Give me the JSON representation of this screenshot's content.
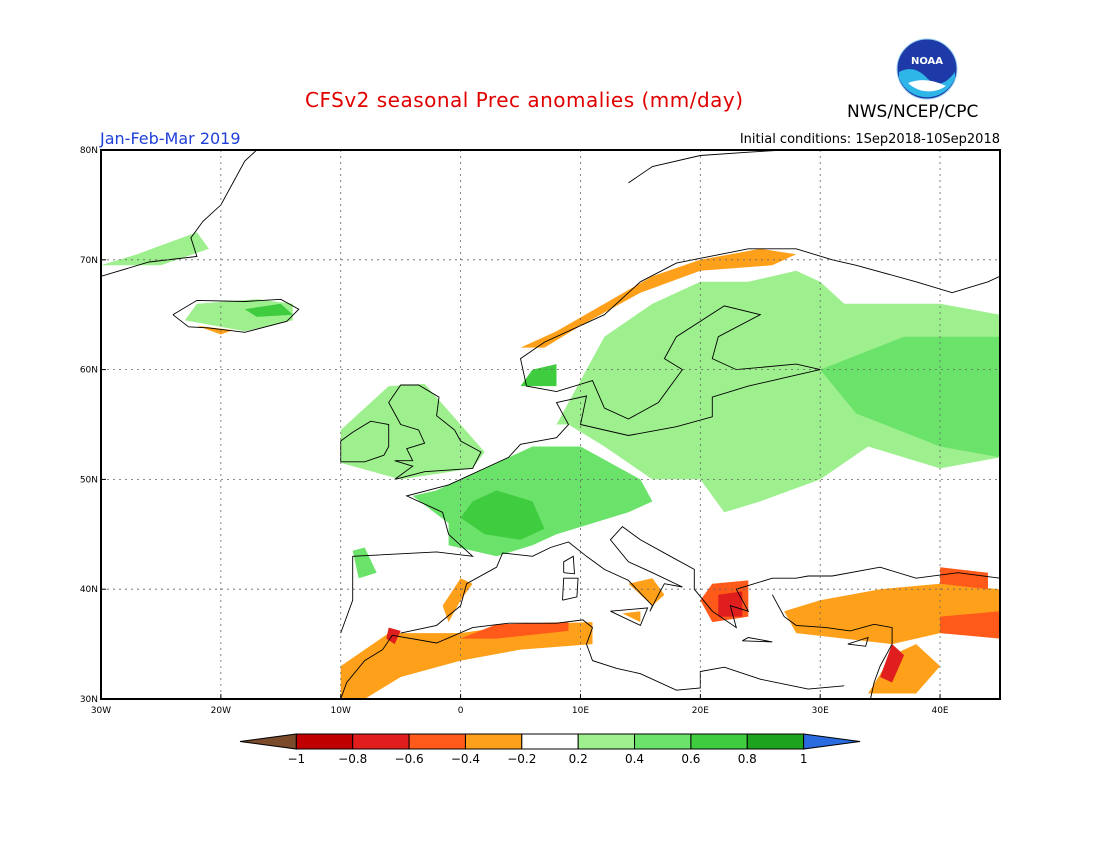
{
  "header": {
    "title": "CFSv2 seasonal Prec anomalies (mm/day)",
    "org": "NWS/NCEP/CPC",
    "period": "Jan-Feb-Mar 2019",
    "initial_conditions": "Initial conditions: 1Sep2018-10Sep2018",
    "logo_text": "NOAA"
  },
  "map": {
    "lon_range": [
      -30,
      45
    ],
    "lat_range": [
      30,
      80
    ],
    "lon_ticks": [
      "30W",
      "20W",
      "10W",
      "0",
      "10E",
      "20E",
      "30E",
      "40E"
    ],
    "lat_ticks": [
      "30N",
      "40N",
      "50N",
      "60N",
      "70N",
      "80N"
    ],
    "grid": "dotted"
  },
  "colorbar": {
    "labels": [
      "−1",
      "−0.8",
      "−0.6",
      "−0.4",
      "−0.2",
      "0.2",
      "0.4",
      "0.6",
      "0.8",
      "1"
    ],
    "colors": [
      "#7a4a2a",
      "#c00000",
      "#e01e1e",
      "#ff5a1a",
      "#ffa01a",
      "#ffffff",
      "#9ef08e",
      "#6be36b",
      "#3fcc3f",
      "#1ea31e",
      "#2b6be0"
    ]
  },
  "anomaly_regions": [
    {
      "level": "0.2",
      "color": "#9ef08e",
      "region": "scandinavia-russia",
      "lonlat": [
        [
          8,
          55
        ],
        [
          10,
          59
        ],
        [
          12,
          63
        ],
        [
          16,
          66
        ],
        [
          20,
          68
        ],
        [
          24,
          68
        ],
        [
          28,
          69
        ],
        [
          30,
          68
        ],
        [
          32,
          66
        ],
        [
          40,
          66
        ],
        [
          45,
          65
        ],
        [
          45,
          52
        ],
        [
          40,
          51
        ],
        [
          34,
          53
        ],
        [
          30,
          50
        ],
        [
          25,
          48
        ],
        [
          22,
          47
        ],
        [
          20,
          50
        ],
        [
          16,
          50
        ],
        [
          12,
          53
        ],
        [
          9,
          55
        ]
      ]
    },
    {
      "level": "0.2",
      "color": "#9ef08e",
      "region": "british-isles",
      "lonlat": [
        [
          -10,
          51.5
        ],
        [
          -10,
          54.5
        ],
        [
          -6,
          58.5
        ],
        [
          -3,
          58.7
        ],
        [
          0,
          55
        ],
        [
          2,
          52.5
        ],
        [
          1,
          51
        ],
        [
          -5,
          50
        ],
        [
          -10,
          51.5
        ]
      ]
    },
    {
      "level": "0.2",
      "color": "#9ef08e",
      "region": "iceland",
      "lonlat": [
        [
          -23,
          64.5
        ],
        [
          -22,
          66
        ],
        [
          -17,
          66.4
        ],
        [
          -14,
          66
        ],
        [
          -14,
          64.5
        ],
        [
          -18,
          63.5
        ],
        [
          -23,
          64.5
        ]
      ]
    },
    {
      "level": "0.2",
      "color": "#9ef08e",
      "region": "greenland-coast",
      "lonlat": [
        [
          -30,
          69.5
        ],
        [
          -27,
          70.5
        ],
        [
          -22,
          72.5
        ],
        [
          -21,
          71
        ],
        [
          -25,
          69.5
        ],
        [
          -30,
          69.5
        ]
      ]
    },
    {
      "level": "0.4",
      "color": "#6be36b",
      "region": "western-europe",
      "lonlat": [
        [
          -4,
          48.5
        ],
        [
          -1,
          46
        ],
        [
          -1,
          44
        ],
        [
          3,
          43
        ],
        [
          6,
          44
        ],
        [
          8,
          45
        ],
        [
          11,
          46
        ],
        [
          14,
          47
        ],
        [
          16,
          48
        ],
        [
          15,
          50
        ],
        [
          10,
          53
        ],
        [
          6,
          53
        ],
        [
          2,
          51
        ],
        [
          -2,
          49
        ],
        [
          -4,
          48.5
        ]
      ]
    },
    {
      "level": "0.4",
      "color": "#6be36b",
      "region": "russia-east",
      "lonlat": [
        [
          30,
          60
        ],
        [
          37,
          63
        ],
        [
          45,
          63
        ],
        [
          45,
          52
        ],
        [
          40,
          53
        ],
        [
          33,
          56
        ],
        [
          30,
          60
        ]
      ]
    },
    {
      "level": "0.4",
      "color": "#6be36b",
      "region": "iberia-nw",
      "lonlat": [
        [
          -9,
          43.5
        ],
        [
          -8,
          43.8
        ],
        [
          -7,
          41.5
        ],
        [
          -8.5,
          41
        ],
        [
          -9,
          43.5
        ]
      ]
    },
    {
      "level": "0.6",
      "color": "#3fcc3f",
      "region": "france-core",
      "lonlat": [
        [
          1,
          48
        ],
        [
          3,
          49
        ],
        [
          6,
          48
        ],
        [
          7,
          45.5
        ],
        [
          5,
          44.5
        ],
        [
          2,
          45
        ],
        [
          0,
          46.5
        ],
        [
          1,
          48
        ]
      ]
    },
    {
      "level": "0.6",
      "color": "#3fcc3f",
      "region": "south-scandinavia",
      "lonlat": [
        [
          5,
          58.5
        ],
        [
          6,
          60
        ],
        [
          8,
          60.5
        ],
        [
          8,
          58.5
        ],
        [
          5,
          58.5
        ]
      ]
    },
    {
      "level": "0.6",
      "color": "#3fcc3f",
      "region": "iceland-east",
      "lonlat": [
        [
          -18,
          65.5
        ],
        [
          -15,
          66
        ],
        [
          -14,
          65
        ],
        [
          -17,
          64.8
        ],
        [
          -18,
          65.5
        ]
      ]
    },
    {
      "level": "-0.2",
      "color": "#ffa01a",
      "region": "north-africa",
      "lonlat": [
        [
          -10,
          30
        ],
        [
          -10,
          33
        ],
        [
          -6,
          36
        ],
        [
          0,
          36
        ],
        [
          5,
          36.8
        ],
        [
          11,
          37
        ],
        [
          11,
          35
        ],
        [
          5,
          34.5
        ],
        [
          0,
          33.5
        ],
        [
          -5,
          32
        ],
        [
          -8,
          30
        ],
        [
          -10,
          30
        ]
      ]
    },
    {
      "level": "-0.2",
      "color": "#ffa01a",
      "region": "spain-east",
      "lonlat": [
        [
          -1,
          37
        ],
        [
          0,
          39
        ],
        [
          1,
          40.5
        ],
        [
          0,
          41
        ],
        [
          -1.5,
          38.5
        ],
        [
          -1,
          37
        ]
      ]
    },
    {
      "level": "-0.2",
      "color": "#ffa01a",
      "region": "turkey",
      "lonlat": [
        [
          27,
          38
        ],
        [
          30,
          39
        ],
        [
          35,
          40
        ],
        [
          40,
          40.5
        ],
        [
          45,
          40
        ],
        [
          45,
          36
        ],
        [
          40,
          36
        ],
        [
          36,
          35
        ],
        [
          32,
          35.5
        ],
        [
          28,
          36
        ],
        [
          27,
          38
        ]
      ]
    },
    {
      "level": "-0.2",
      "color": "#ffa01a",
      "region": "levant",
      "lonlat": [
        [
          34,
          30.5
        ],
        [
          36,
          34
        ],
        [
          38,
          35
        ],
        [
          40,
          33
        ],
        [
          38,
          30.5
        ],
        [
          34,
          30.5
        ]
      ]
    },
    {
      "level": "-0.2",
      "color": "#ffa01a",
      "region": "norway-coast",
      "lonlat": [
        [
          5,
          62
        ],
        [
          8,
          63.5
        ],
        [
          12,
          66
        ],
        [
          16,
          68.5
        ],
        [
          20,
          70
        ],
        [
          25,
          71
        ],
        [
          28,
          70.5
        ],
        [
          26,
          69.5
        ],
        [
          20,
          69
        ],
        [
          15,
          67
        ],
        [
          10,
          64
        ],
        [
          7,
          62
        ],
        [
          5,
          62
        ]
      ]
    },
    {
      "level": "-0.2",
      "color": "#ffa01a",
      "region": "italy-south",
      "lonlat": [
        [
          14,
          40.5
        ],
        [
          16,
          41
        ],
        [
          17,
          39.5
        ],
        [
          16,
          38.5
        ],
        [
          14,
          40.5
        ]
      ]
    },
    {
      "level": "-0.2",
      "color": "#ffa01a",
      "region": "sicily",
      "lonlat": [
        [
          13.5,
          37.8
        ],
        [
          15,
          38
        ],
        [
          15,
          37
        ],
        [
          13.5,
          37.8
        ]
      ]
    },
    {
      "level": "-0.2",
      "color": "#ffa01a",
      "region": "iceland-south",
      "lonlat": [
        [
          -22,
          64
        ],
        [
          -19,
          63.6
        ],
        [
          -20,
          63.2
        ],
        [
          -22,
          64
        ]
      ]
    },
    {
      "level": "-0.4",
      "color": "#ff5a1a",
      "region": "greece",
      "lonlat": [
        [
          21,
          40.5
        ],
        [
          24,
          40.8
        ],
        [
          24,
          37.5
        ],
        [
          21,
          37
        ],
        [
          20,
          39
        ],
        [
          21,
          40.5
        ]
      ]
    },
    {
      "level": "-0.4",
      "color": "#ff5a1a",
      "region": "turkey-east",
      "lonlat": [
        [
          40,
          37.5
        ],
        [
          45,
          38
        ],
        [
          45,
          35.5
        ],
        [
          40,
          36
        ],
        [
          40,
          37.5
        ]
      ]
    },
    {
      "level": "-0.4",
      "color": "#ff5a1a",
      "region": "caucasus",
      "lonlat": [
        [
          40,
          42
        ],
        [
          44,
          41.5
        ],
        [
          44,
          40
        ],
        [
          40,
          40.5
        ],
        [
          40,
          42
        ]
      ]
    },
    {
      "level": "-0.4",
      "color": "#ff5a1a",
      "region": "algeria-coast",
      "lonlat": [
        [
          0,
          35.5
        ],
        [
          3,
          36.8
        ],
        [
          9,
          37
        ],
        [
          9,
          36.2
        ],
        [
          3,
          35.5
        ],
        [
          0,
          35.5
        ]
      ]
    },
    {
      "level": "-0.6",
      "color": "#e01e1e",
      "region": "greece-core",
      "lonlat": [
        [
          21.5,
          39.5
        ],
        [
          23.5,
          39.8
        ],
        [
          23.5,
          37.5
        ],
        [
          21.5,
          37.5
        ],
        [
          21.5,
          39.5
        ]
      ]
    },
    {
      "level": "-0.6",
      "color": "#e01e1e",
      "region": "gibraltar",
      "lonlat": [
        [
          -6,
          36.5
        ],
        [
          -5,
          36.2
        ],
        [
          -5.5,
          35
        ],
        [
          -6.2,
          35.5
        ],
        [
          -6,
          36.5
        ]
      ]
    },
    {
      "level": "-0.6",
      "color": "#e01e1e",
      "region": "levant-core",
      "lonlat": [
        [
          35,
          32
        ],
        [
          36,
          35
        ],
        [
          37,
          34
        ],
        [
          36,
          31.5
        ],
        [
          35,
          32
        ]
      ]
    }
  ]
}
